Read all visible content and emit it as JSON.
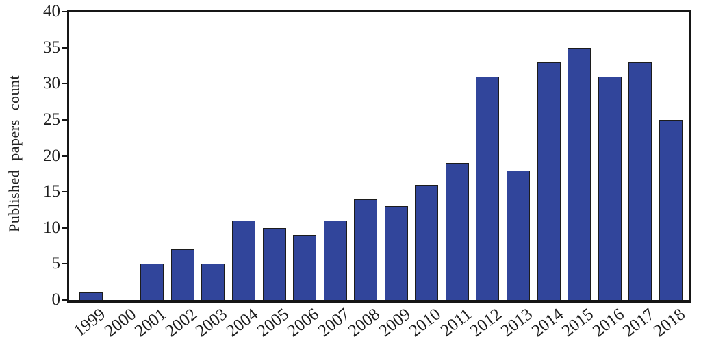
{
  "chart_data": {
    "type": "bar",
    "title": "",
    "xlabel": "",
    "ylabel": "Published papers count",
    "categories": [
      "1999",
      "2000",
      "2001",
      "2002",
      "2003",
      "2004",
      "2005",
      "2006",
      "2007",
      "2008",
      "2009",
      "2010",
      "2011",
      "2012",
      "2013",
      "2014",
      "2015",
      "2016",
      "2017",
      "2018"
    ],
    "values": [
      1,
      0,
      5,
      7,
      5,
      11,
      10,
      9,
      11,
      14,
      13,
      16,
      19,
      31,
      18,
      33,
      35,
      31,
      33,
      25
    ],
    "ylim": [
      0,
      40
    ],
    "ytick_step": 5,
    "yticks": [
      0,
      5,
      10,
      15,
      20,
      25,
      30,
      35,
      40
    ],
    "grid": false,
    "legend": null,
    "bar_color": "#31459B",
    "bar_border_color": "#1c1c1c",
    "frame_color": "#161616",
    "x_label_rotation_deg": -38
  }
}
